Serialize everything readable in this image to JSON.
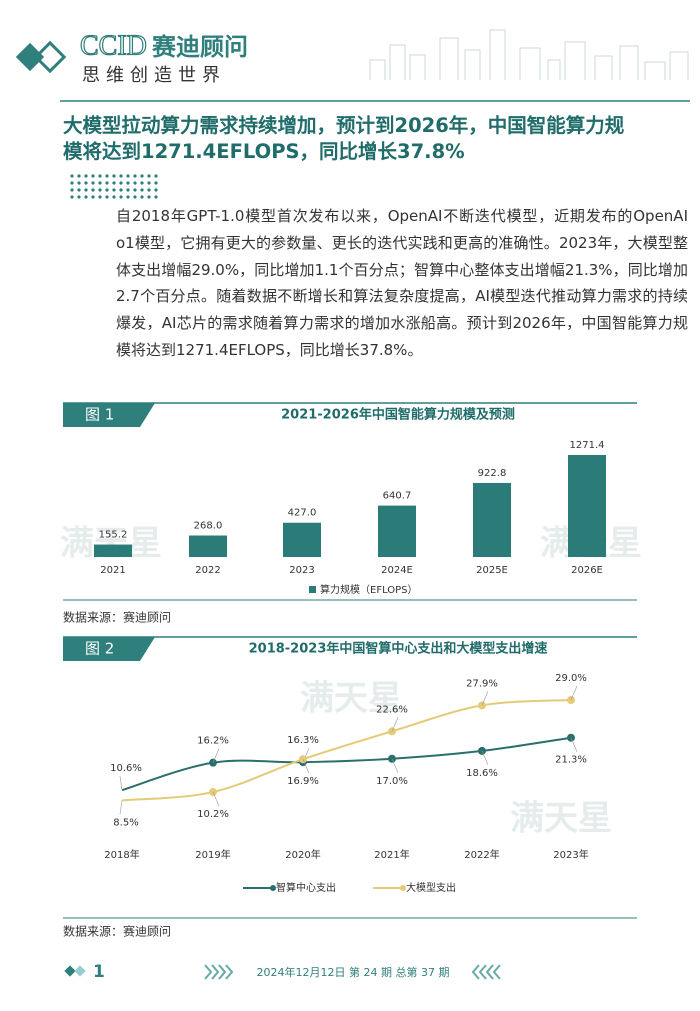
{
  "header": {
    "logo": "CCID",
    "brand": "赛迪顾问",
    "slogan": "思维创造世界"
  },
  "title": "大模型拉动算力需求持续增加，预计到2026年，中国智能算力规模将达到1271.4EFLOPS，同比增长37.8%",
  "body": "自2018年GPT-1.0模型首次发布以来，OpenAI不断迭代模型，近期发布的OpenAI o1模型，它拥有更大的参数量、更长的迭代实践和更高的准确性。2023年，大模型整体支出增幅29.0%，同比增加1.1个百分点；智算中心整体支出增幅21.3%，同比增加2.7个百分点。随着数据不断增长和算法复杂度提高，AI模型迭代推动算力需求的持续爆发，AI芯片的需求随着算力需求的增加水涨船高。预计到2026年，中国智能算力规模将达到1271.4EFLOPS，同比增长37.8%。",
  "watermark": "满天星",
  "figure_labels": [
    "图 1",
    "图 2"
  ],
  "sources": [
    "数据来源：赛迪顾问",
    "数据来源：赛迪顾问"
  ],
  "chart_data": [
    {
      "type": "bar",
      "title": "2021-2026年中国智能算力规模及预测",
      "categories": [
        "2021",
        "2022",
        "2023",
        "2024E",
        "2025E",
        "2026E"
      ],
      "series": [
        {
          "name": "算力规模（EFLOPS）",
          "color": "#2b7b78",
          "values": [
            155.2,
            268.0,
            427.0,
            640.7,
            922.8,
            1271.4
          ],
          "value_labels": [
            "155.2",
            "268.0",
            "427.0",
            "640.7",
            "922.8",
            "1271.4"
          ]
        }
      ]
    },
    {
      "type": "line",
      "title": "2018-2023年中国智算中心支出和大模型支出增速",
      "categories": [
        "2018年",
        "2019年",
        "2020年",
        "2021年",
        "2022年",
        "2023年"
      ],
      "series": [
        {
          "name": "智算中心支出",
          "color": "#2a6f6d",
          "values": [
            10.6,
            16.2,
            16.3,
            17.0,
            18.6,
            21.3
          ],
          "value_labels": [
            "10.6%",
            "16.2%",
            "16.3%",
            "17.0%",
            "18.6%",
            "21.3%"
          ]
        },
        {
          "name": "大模型支出",
          "color": "#e3cb78",
          "values": [
            8.5,
            10.2,
            16.9,
            22.6,
            27.9,
            29.0
          ],
          "value_labels": [
            "8.5%",
            "10.2%",
            "16.9%",
            "22.6%",
            "27.9%",
            "29.0%"
          ]
        }
      ]
    }
  ],
  "footer": {
    "page": "1",
    "issue": "2024年12月12日  第 24 期  总第 37 期"
  }
}
